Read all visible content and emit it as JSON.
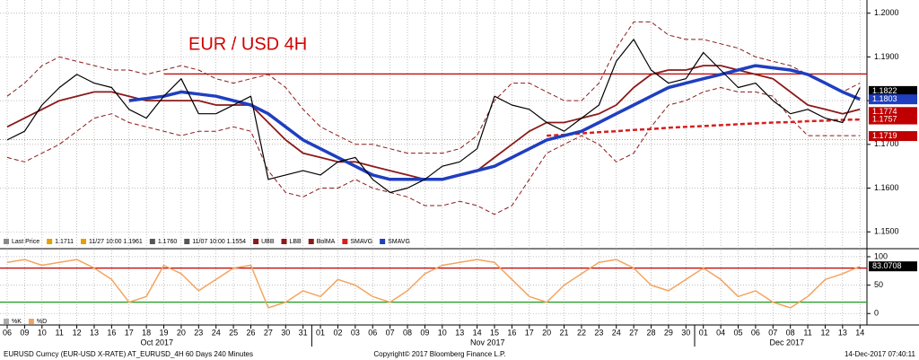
{
  "chart_data": [
    {
      "type": "line",
      "title": "EUR / USD 4H",
      "categories": [
        "06",
        "09",
        "10",
        "11",
        "12",
        "13",
        "16",
        "17",
        "18",
        "19",
        "20",
        "23",
        "24",
        "25",
        "26",
        "27",
        "30",
        "31",
        "01",
        "02",
        "03",
        "06",
        "07",
        "08",
        "09",
        "10",
        "13",
        "14",
        "15",
        "16",
        "17",
        "20",
        "21",
        "22",
        "23",
        "24",
        "27",
        "28",
        "29",
        "30",
        "01",
        "04",
        "05",
        "06",
        "07",
        "08",
        "11",
        "12",
        "13",
        "14"
      ],
      "months": [
        "Oct 2017",
        "Nov 2017",
        "Dec 2017"
      ],
      "ylim": [
        1.148,
        1.2026
      ],
      "yticks": [
        {
          "value": 1.15,
          "label": "1.1500"
        },
        {
          "value": 1.16,
          "label": "1.1600"
        },
        {
          "value": 1.17,
          "label": "1.1700"
        },
        {
          "value": 1.18,
          "label": "1.1800"
        },
        {
          "value": 1.19,
          "label": "1.1900"
        },
        {
          "value": 1.2,
          "label": "1.2000"
        }
      ],
      "grid": true,
      "legend_stats": [
        "Last Price",
        "1.1711",
        "11/27 10:00 1.1961",
        "1.1760",
        "11/07 10:00 1.1554"
      ],
      "series": [
        {
          "name": "UBB",
          "color": "#8b1a1a",
          "dashed": true,
          "width": 1,
          "values": [
            1.181,
            1.184,
            1.188,
            1.19,
            1.189,
            1.188,
            1.187,
            1.187,
            1.186,
            1.187,
            1.188,
            1.187,
            1.185,
            1.184,
            1.185,
            1.186,
            1.183,
            1.178,
            1.174,
            1.172,
            1.17,
            1.17,
            1.169,
            1.168,
            1.168,
            1.168,
            1.169,
            1.172,
            1.18,
            1.184,
            1.184,
            1.182,
            1.18,
            1.18,
            1.184,
            1.192,
            1.198,
            1.198,
            1.195,
            1.194,
            1.194,
            1.193,
            1.192,
            1.19,
            1.189,
            1.188,
            1.186,
            1.184,
            1.182,
            1.184
          ]
        },
        {
          "name": "LBB",
          "color": "#8b1a1a",
          "dashed": true,
          "width": 1,
          "values": [
            1.167,
            1.166,
            1.168,
            1.17,
            1.173,
            1.176,
            1.177,
            1.175,
            1.174,
            1.173,
            1.172,
            1.173,
            1.173,
            1.174,
            1.173,
            1.164,
            1.159,
            1.158,
            1.16,
            1.16,
            1.162,
            1.16,
            1.159,
            1.158,
            1.156,
            1.156,
            1.157,
            1.156,
            1.154,
            1.156,
            1.162,
            1.168,
            1.17,
            1.172,
            1.17,
            1.166,
            1.168,
            1.174,
            1.179,
            1.18,
            1.182,
            1.183,
            1.182,
            1.182,
            1.181,
            1.176,
            1.172,
            1.172,
            1.172,
            1.172
          ]
        },
        {
          "name": "BolMA",
          "color": "#8b1a1a",
          "dashed": false,
          "width": 1.8,
          "values": [
            1.174,
            1.176,
            1.178,
            1.18,
            1.181,
            1.182,
            1.182,
            1.181,
            1.18,
            1.18,
            1.18,
            1.18,
            1.179,
            1.179,
            1.179,
            1.175,
            1.171,
            1.168,
            1.167,
            1.166,
            1.166,
            1.165,
            1.164,
            1.163,
            1.162,
            1.162,
            1.163,
            1.164,
            1.167,
            1.17,
            1.173,
            1.175,
            1.175,
            1.176,
            1.177,
            1.179,
            1.183,
            1.186,
            1.187,
            1.187,
            1.188,
            1.188,
            1.187,
            1.186,
            1.185,
            1.182,
            1.179,
            1.178,
            1.177,
            1.178
          ]
        },
        {
          "name": "SMAVG",
          "color": "#d62020",
          "dashed": true,
          "width": 2.5,
          "values": [
            null,
            null,
            null,
            null,
            null,
            null,
            null,
            null,
            null,
            null,
            null,
            null,
            null,
            null,
            null,
            null,
            null,
            null,
            null,
            null,
            null,
            null,
            null,
            null,
            null,
            null,
            null,
            null,
            null,
            null,
            null,
            1.172,
            1.1722,
            1.1725,
            1.1728,
            1.173,
            1.1733,
            1.1735,
            1.1738,
            1.174,
            1.1742,
            1.1744,
            1.1746,
            1.1748,
            1.175,
            1.1751,
            1.1753,
            1.1754,
            1.1756,
            1.1757
          ]
        },
        {
          "name": "SMAVG",
          "color": "#1f3fbf",
          "dashed": false,
          "width": 3.5,
          "values": [
            null,
            null,
            null,
            null,
            null,
            null,
            null,
            1.18,
            1.1805,
            1.181,
            1.182,
            1.1815,
            1.181,
            1.18,
            1.179,
            1.177,
            1.174,
            1.171,
            1.169,
            1.167,
            1.165,
            1.163,
            1.162,
            1.162,
            1.162,
            1.162,
            1.163,
            1.164,
            1.165,
            1.167,
            1.169,
            1.171,
            1.172,
            1.173,
            1.175,
            1.177,
            1.179,
            1.181,
            1.183,
            1.184,
            1.185,
            1.186,
            1.187,
            1.188,
            1.1875,
            1.187,
            1.186,
            1.184,
            1.182,
            1.1803
          ]
        },
        {
          "name": "Last Price",
          "color": "#000000",
          "dashed": false,
          "width": 1.2,
          "values": [
            1.171,
            1.173,
            1.179,
            1.183,
            1.186,
            1.184,
            1.183,
            1.178,
            1.176,
            1.181,
            1.185,
            1.177,
            1.177,
            1.179,
            1.181,
            1.162,
            1.163,
            1.164,
            1.163,
            1.166,
            1.167,
            1.162,
            1.159,
            1.16,
            1.162,
            1.165,
            1.166,
            1.169,
            1.181,
            1.179,
            1.178,
            1.175,
            1.173,
            1.176,
            1.179,
            1.189,
            1.194,
            1.187,
            1.184,
            1.185,
            1.191,
            1.187,
            1.183,
            1.184,
            1.18,
            1.177,
            1.178,
            1.176,
            1.175,
            1.183
          ]
        }
      ],
      "hlines": [
        {
          "value": 1.1861,
          "color": "#c00000",
          "dashed": false
        },
        {
          "value": 1.1711,
          "color": "#e69f00",
          "dashed": true
        }
      ],
      "price_labels": [
        {
          "value": 1.1822,
          "color": "#000000"
        },
        {
          "value": 1.1803,
          "color": "#1f3fbf"
        },
        {
          "value": 1.1774,
          "color": "#c00000"
        },
        {
          "value": 1.1757,
          "color": "#c00000"
        },
        {
          "value": 1.1719,
          "color": "#c00000"
        }
      ]
    },
    {
      "type": "line",
      "ylim": [
        -17,
        111
      ],
      "yticks": [
        0,
        50,
        100
      ],
      "grid": true,
      "legend_stats": [
        "%K",
        "%D"
      ],
      "series": [
        {
          "name": "%K",
          "color": "#f4a460",
          "dashed": false,
          "width": 1.5,
          "values": [
            90,
            95,
            85,
            90,
            95,
            80,
            60,
            20,
            30,
            85,
            70,
            40,
            60,
            80,
            85,
            10,
            20,
            40,
            30,
            60,
            50,
            30,
            20,
            40,
            70,
            85,
            90,
            95,
            90,
            60,
            30,
            20,
            50,
            70,
            90,
            95,
            80,
            50,
            40,
            60,
            80,
            60,
            30,
            40,
            20,
            10,
            30,
            60,
            70,
            83.0708
          ]
        }
      ],
      "hlines": [
        {
          "value": 80,
          "color": "#c00000",
          "dashed": false
        },
        {
          "value": 20,
          "color": "#2ca02c",
          "dashed": false
        }
      ],
      "price_labels": [
        {
          "value": 83.0708,
          "color": "#000000"
        }
      ]
    }
  ],
  "footer": {
    "left": "EURUSD Curncy (EUR-USD X-RATE) AT_EURUSD_4H 60 Days 240 Minutes",
    "center": "Copyright© 2017 Bloomberg Finance L.P.",
    "right": "14-Dec-2017 07:40:11"
  }
}
